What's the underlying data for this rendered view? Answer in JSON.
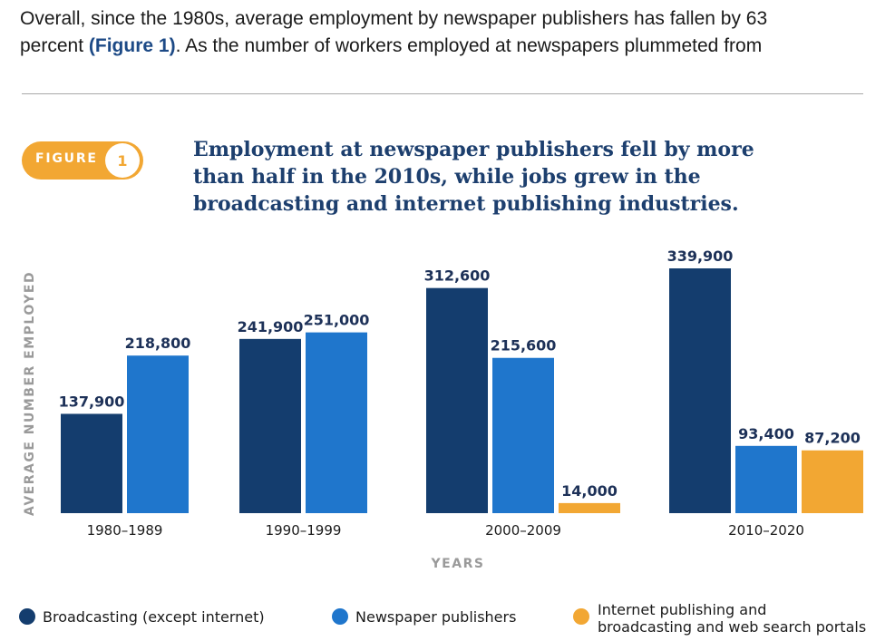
{
  "intro": {
    "line1": "Overall, since the 1980s, average employment by newspaper publishers has fallen by 63",
    "line2_start": "percent ",
    "line2_ref": "(Figure 1)",
    "line2_end": ". As the number of workers employed at newspapers plummeted from"
  },
  "figure": {
    "badge_label": "FIGURE",
    "badge_number": "1",
    "title": "Employment at newspaper publishers fell by more than half in the 2010s, while jobs grew in the broadcasting and internet publishing industries."
  },
  "chart_data": {
    "type": "bar",
    "categories": [
      "1980–1989",
      "1990–1999",
      "2000–2009",
      "2010–2020"
    ],
    "series": [
      {
        "name": "Broadcasting (except internet)",
        "color": "#143d6e",
        "values": [
          137900,
          241900,
          312600,
          339900
        ]
      },
      {
        "name": "Newspaper publishers",
        "color": "#1f76cc",
        "values": [
          218800,
          251000,
          215600,
          93400
        ]
      },
      {
        "name": "Internet publishing and broadcasting and web search portals",
        "color": "#f2a733",
        "values": [
          null,
          null,
          14000,
          87200
        ]
      }
    ],
    "data_labels": [
      [
        "137,900",
        "241,900",
        "312,600",
        "339,900"
      ],
      [
        "218,800",
        "251,000",
        "215,600",
        "93,400"
      ],
      [
        null,
        null,
        "14,000",
        "87,200"
      ]
    ],
    "xlabel": "YEARS",
    "ylabel": "AVERAGE NUMBER EMPLOYED",
    "ylim": [
      0,
      339900
    ],
    "grid": false,
    "legend_position": "bottom"
  },
  "legend": [
    {
      "label": "Broadcasting (except internet)",
      "color": "#143d6e"
    },
    {
      "label": "Newspaper publishers",
      "color": "#1f76cc"
    },
    {
      "label_line1": "Internet publishing and",
      "label_line2": "broadcasting and web search portals",
      "color": "#f2a733"
    }
  ]
}
